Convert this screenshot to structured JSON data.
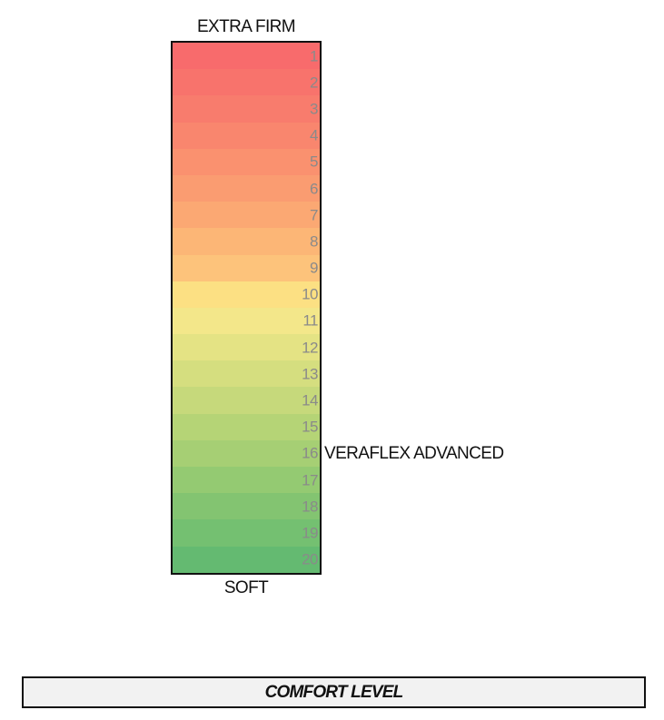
{
  "chart_data": {
    "type": "table",
    "top_label": "EXTRA FIRM",
    "bottom_label": "SOFT",
    "levels": [
      1,
      2,
      3,
      4,
      5,
      6,
      7,
      8,
      9,
      10,
      11,
      12,
      13,
      14,
      15,
      16,
      17,
      18,
      19,
      20
    ],
    "colors": [
      "#f86b6c",
      "#f8736c",
      "#f87c6d",
      "#f9866e",
      "#fa916f",
      "#fa9c71",
      "#fba873",
      "#fcb676",
      "#fdc37b",
      "#fce083",
      "#f3e78a",
      "#e4e384",
      "#d5de7f",
      "#c6d97b",
      "#b5d476",
      "#a6cf74",
      "#94ca72",
      "#83c471",
      "#74c071",
      "#64ba71"
    ],
    "marker": {
      "level": 16,
      "label": "VERAFLEX ADVANCED"
    }
  },
  "footer": {
    "title": "COMFORT LEVEL"
  }
}
